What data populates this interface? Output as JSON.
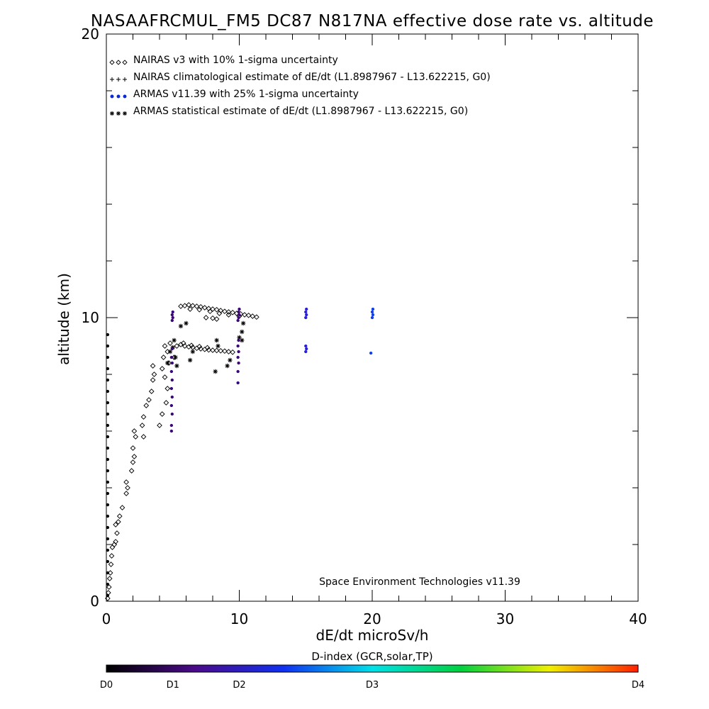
{
  "chart_data": {
    "type": "scatter",
    "title": "NASAAFRCMUL_FM5 DC87 N817NA effective dose rate vs. altitude",
    "xlabel": "dE/dt microSv/h",
    "ylabel": "altitude (km)",
    "xlim": [
      0,
      40
    ],
    "ylim": [
      0,
      20
    ],
    "x_ticks": [
      "0",
      "10",
      "20",
      "30",
      "40"
    ],
    "y_ticks": [
      "0",
      "10",
      "20"
    ],
    "grid": false,
    "legend_position": "top-left",
    "credit": "Space Environment Technologies v11.39",
    "series": [
      {
        "name": "NAIRAS v3 with 10% 1-sigma uncertainty",
        "marker": "diamond",
        "color": "#000000",
        "points": [
          [
            0.1,
            0.1
          ],
          [
            0.15,
            0.3
          ],
          [
            0.2,
            0.5
          ],
          [
            0.25,
            0.8
          ],
          [
            0.3,
            1.0
          ],
          [
            0.35,
            1.3
          ],
          [
            0.4,
            1.6
          ],
          [
            0.45,
            1.9
          ],
          [
            0.6,
            2.0
          ],
          [
            0.7,
            2.1
          ],
          [
            0.8,
            2.4
          ],
          [
            0.7,
            2.7
          ],
          [
            0.9,
            2.8
          ],
          [
            1.0,
            3.0
          ],
          [
            1.2,
            3.3
          ],
          [
            1.5,
            3.8
          ],
          [
            1.6,
            4.0
          ],
          [
            1.5,
            4.2
          ],
          [
            1.9,
            4.6
          ],
          [
            2.0,
            4.9
          ],
          [
            2.1,
            5.1
          ],
          [
            2.0,
            5.4
          ],
          [
            2.2,
            5.8
          ],
          [
            2.1,
            6.0
          ],
          [
            2.8,
            5.8
          ],
          [
            2.7,
            6.2
          ],
          [
            2.8,
            6.5
          ],
          [
            3.0,
            6.9
          ],
          [
            3.2,
            7.1
          ],
          [
            3.4,
            7.4
          ],
          [
            3.5,
            7.8
          ],
          [
            3.6,
            8.0
          ],
          [
            3.5,
            8.3
          ],
          [
            4.2,
            8.2
          ],
          [
            4.3,
            8.6
          ],
          [
            4.4,
            9.0
          ],
          [
            4.6,
            8.8
          ],
          [
            4.8,
            9.1
          ],
          [
            4.0,
            6.2
          ],
          [
            4.2,
            6.6
          ],
          [
            4.5,
            7.0
          ],
          [
            4.6,
            7.5
          ],
          [
            4.4,
            7.9
          ],
          [
            4.7,
            8.4
          ],
          [
            5.1,
            8.6
          ],
          [
            5.3,
            9.0
          ],
          [
            5.6,
            9.05
          ],
          [
            5.9,
            9.0
          ],
          [
            6.2,
            8.97
          ],
          [
            6.5,
            8.95
          ],
          [
            6.8,
            8.92
          ],
          [
            7.1,
            8.9
          ],
          [
            7.4,
            8.88
          ],
          [
            7.7,
            8.86
          ],
          [
            8.0,
            8.85
          ],
          [
            8.3,
            8.84
          ],
          [
            8.6,
            8.83
          ],
          [
            8.9,
            8.82
          ],
          [
            9.2,
            8.8
          ],
          [
            9.5,
            8.78
          ],
          [
            5.8,
            9.1
          ],
          [
            6.4,
            9.02
          ],
          [
            7.0,
            8.98
          ],
          [
            7.6,
            8.94
          ],
          [
            5.6,
            10.4
          ],
          [
            5.9,
            10.42
          ],
          [
            6.2,
            10.45
          ],
          [
            6.5,
            10.42
          ],
          [
            6.8,
            10.4
          ],
          [
            7.1,
            10.38
          ],
          [
            7.4,
            10.35
          ],
          [
            7.7,
            10.32
          ],
          [
            8.0,
            10.3
          ],
          [
            8.3,
            10.28
          ],
          [
            8.6,
            10.25
          ],
          [
            8.9,
            10.22
          ],
          [
            9.2,
            10.2
          ],
          [
            9.5,
            10.18
          ],
          [
            9.8,
            10.15
          ],
          [
            10.1,
            10.13
          ],
          [
            10.4,
            10.1
          ],
          [
            10.7,
            10.08
          ],
          [
            11.0,
            10.05
          ],
          [
            11.3,
            10.02
          ],
          [
            6.3,
            10.3
          ],
          [
            7.0,
            10.28
          ],
          [
            7.8,
            10.22
          ],
          [
            8.5,
            10.15
          ],
          [
            9.2,
            10.1
          ],
          [
            10.0,
            10.05
          ],
          [
            7.5,
            10.0
          ],
          [
            8.0,
            9.98
          ],
          [
            8.3,
            9.95
          ]
        ]
      },
      {
        "name": "NAIRAS climatological estimate of dE/dt (L1.8987967 - L13.622215, G0)",
        "marker": "plus",
        "color": "#000000",
        "points": []
      },
      {
        "name": "ARMAS v11.39 with 25% 1-sigma uncertainty",
        "marker": "dot",
        "color": "#0a2ad8",
        "points": [
          [
            0.1,
            0.2
          ],
          [
            0.1,
            0.6
          ],
          [
            0.1,
            1.0
          ],
          [
            0.1,
            1.4
          ],
          [
            0.1,
            1.8
          ],
          [
            0.1,
            2.2
          ],
          [
            0.1,
            2.6
          ],
          [
            0.1,
            3.0
          ],
          [
            0.1,
            3.4
          ],
          [
            0.1,
            3.8
          ],
          [
            0.1,
            4.2
          ],
          [
            0.1,
            4.6
          ],
          [
            0.1,
            5.0
          ],
          [
            0.1,
            5.4
          ],
          [
            0.1,
            5.8
          ],
          [
            0.1,
            6.2
          ],
          [
            0.1,
            6.6
          ],
          [
            0.1,
            7.0
          ],
          [
            0.1,
            7.4
          ],
          [
            0.1,
            7.8
          ],
          [
            0.1,
            8.2
          ],
          [
            0.1,
            8.6
          ],
          [
            0.1,
            9.0
          ],
          [
            0.1,
            9.4
          ],
          [
            4.9,
            6.0
          ],
          [
            4.9,
            6.2
          ],
          [
            4.95,
            6.6
          ],
          [
            4.9,
            6.9
          ],
          [
            4.95,
            7.2
          ],
          [
            4.9,
            7.5
          ],
          [
            4.95,
            7.8
          ],
          [
            4.9,
            8.1
          ],
          [
            4.95,
            8.4
          ],
          [
            4.9,
            8.6
          ],
          [
            4.95,
            8.9
          ],
          [
            4.95,
            9.9
          ],
          [
            5.0,
            10.0
          ],
          [
            4.95,
            10.1
          ],
          [
            5.0,
            10.2
          ],
          [
            9.9,
            7.7
          ],
          [
            9.9,
            8.1
          ],
          [
            9.95,
            8.4
          ],
          [
            9.9,
            8.6
          ],
          [
            9.95,
            8.8
          ],
          [
            9.9,
            9.0
          ],
          [
            9.95,
            9.2
          ],
          [
            9.9,
            9.9
          ],
          [
            9.95,
            10.0
          ],
          [
            10.0,
            10.1
          ],
          [
            9.95,
            10.2
          ],
          [
            10.0,
            10.3
          ],
          [
            15.0,
            8.8
          ],
          [
            15.05,
            8.9
          ],
          [
            15.0,
            9.0
          ],
          [
            15.0,
            10.0
          ],
          [
            15.05,
            10.1
          ],
          [
            15.0,
            10.2
          ],
          [
            15.05,
            10.3
          ],
          [
            19.9,
            8.75
          ],
          [
            20.0,
            10.0
          ],
          [
            20.05,
            10.1
          ],
          [
            20.0,
            10.2
          ],
          [
            20.05,
            10.3
          ]
        ]
      },
      {
        "name": "ARMAS statistical estimate of dE/dt (L1.8987967 - L13.622215, G0)",
        "marker": "asterisk",
        "color": "#000000",
        "points": [
          [
            4.6,
            8.4
          ],
          [
            4.8,
            8.8
          ],
          [
            5.0,
            8.95
          ],
          [
            5.1,
            9.2
          ],
          [
            5.2,
            8.6
          ],
          [
            5.3,
            8.3
          ],
          [
            6.3,
            8.5
          ],
          [
            6.5,
            8.8
          ],
          [
            6.0,
            9.8
          ],
          [
            5.6,
            9.7
          ],
          [
            8.2,
            8.1
          ],
          [
            8.4,
            9.0
          ],
          [
            9.1,
            8.3
          ],
          [
            9.3,
            8.5
          ],
          [
            10.0,
            9.3
          ],
          [
            10.2,
            9.5
          ],
          [
            10.3,
            9.8
          ],
          [
            10.2,
            9.2
          ],
          [
            8.3,
            9.2
          ]
        ]
      }
    ]
  },
  "colorbar": {
    "title": "D-index (GCR,solar,TP)",
    "labels": [
      "D0",
      "D1",
      "D2",
      "D3",
      "D4"
    ],
    "label_fractions": [
      0.0,
      0.125,
      0.25,
      0.5,
      1.0
    ],
    "stops": [
      "#000000",
      "#4a0a8a",
      "#1030f0",
      "#00e0e8",
      "#00d040",
      "#f0f000",
      "#ff2000"
    ]
  }
}
